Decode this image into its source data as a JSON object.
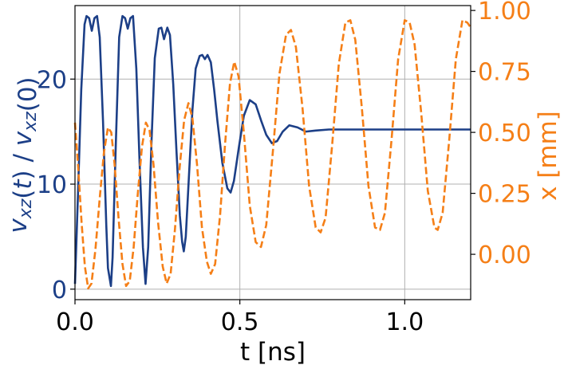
{
  "chart_data": {
    "type": "line",
    "x_axis": {
      "label": "t [ns]",
      "range": [
        0.0,
        1.2
      ],
      "ticks": [
        0.0,
        0.5,
        1.0
      ],
      "tick_labels": [
        "0.0",
        "0.5",
        "1.0"
      ]
    },
    "y_left_axis": {
      "label_parts": [
        {
          "text": "v",
          "italic": true
        },
        {
          "text": "xz",
          "italic": true,
          "sub": true
        },
        {
          "text": "(",
          "italic": false
        },
        {
          "text": "t",
          "italic": true
        },
        {
          "text": ") / ",
          "italic": false
        },
        {
          "text": "v",
          "italic": true
        },
        {
          "text": "xz",
          "italic": true,
          "sub": true
        },
        {
          "text": "(0)",
          "italic": false
        }
      ],
      "range": [
        -1,
        27
      ],
      "ticks": [
        0,
        10,
        20
      ],
      "tick_labels": [
        "0",
        "10",
        "20"
      ],
      "color": "#1c3f87"
    },
    "y_right_axis": {
      "label": "x [mm]",
      "range": [
        -0.186,
        1.02
      ],
      "ticks": [
        0.0,
        0.25,
        0.5,
        0.75,
        1.0
      ],
      "tick_labels": [
        "0.00",
        "0.25",
        "0.50",
        "0.75",
        "1.00"
      ],
      "color": "#f57f17"
    },
    "grid": true,
    "series": [
      {
        "axis": "left",
        "style": "solid",
        "color": "#1c3f87",
        "points": [
          [
            0.0,
            0.5
          ],
          [
            0.009,
            9
          ],
          [
            0.019,
            19
          ],
          [
            0.029,
            25.2
          ],
          [
            0.035,
            26
          ],
          [
            0.043,
            25.8
          ],
          [
            0.051,
            24.6
          ],
          [
            0.059,
            25.8
          ],
          [
            0.067,
            26
          ],
          [
            0.075,
            24
          ],
          [
            0.085,
            16
          ],
          [
            0.095,
            6
          ],
          [
            0.1,
            2
          ],
          [
            0.109,
            0.3
          ],
          [
            0.114,
            3
          ],
          [
            0.124,
            14
          ],
          [
            0.134,
            24
          ],
          [
            0.144,
            26
          ],
          [
            0.152,
            25.8
          ],
          [
            0.16,
            24.8
          ],
          [
            0.168,
            25.8
          ],
          [
            0.176,
            26
          ],
          [
            0.186,
            21
          ],
          [
            0.196,
            12
          ],
          [
            0.206,
            4
          ],
          [
            0.214,
            0.5
          ],
          [
            0.222,
            4
          ],
          [
            0.232,
            14
          ],
          [
            0.242,
            22
          ],
          [
            0.254,
            24.8
          ],
          [
            0.262,
            24.9
          ],
          [
            0.27,
            23.8
          ],
          [
            0.28,
            24.9
          ],
          [
            0.288,
            24.2
          ],
          [
            0.298,
            19.5
          ],
          [
            0.308,
            13
          ],
          [
            0.318,
            7
          ],
          [
            0.325,
            4.5
          ],
          [
            0.33,
            3.6
          ],
          [
            0.336,
            5
          ],
          [
            0.346,
            11
          ],
          [
            0.356,
            17
          ],
          [
            0.366,
            21
          ],
          [
            0.378,
            22.2
          ],
          [
            0.386,
            22.3
          ],
          [
            0.394,
            21.9
          ],
          [
            0.402,
            22.3
          ],
          [
            0.412,
            21.6
          ],
          [
            0.422,
            19
          ],
          [
            0.432,
            16
          ],
          [
            0.447,
            12
          ],
          [
            0.462,
            9.6
          ],
          [
            0.472,
            9.2
          ],
          [
            0.482,
            10.3
          ],
          [
            0.497,
            13.5
          ],
          [
            0.512,
            16.5
          ],
          [
            0.53,
            18
          ],
          [
            0.548,
            17.6
          ],
          [
            0.565,
            16
          ],
          [
            0.58,
            14.7
          ],
          [
            0.597,
            13.9
          ],
          [
            0.613,
            14.1
          ],
          [
            0.63,
            15
          ],
          [
            0.65,
            15.6
          ],
          [
            0.675,
            15.4
          ],
          [
            0.7,
            15
          ],
          [
            0.73,
            15.1
          ],
          [
            0.77,
            15.2
          ],
          [
            0.85,
            15.2
          ],
          [
            1.0,
            15.2
          ],
          [
            1.2,
            15.2
          ]
        ]
      },
      {
        "axis": "right",
        "style": "dashed",
        "color": "#f57f17",
        "points": [
          [
            0.0,
            0.54
          ],
          [
            0.01,
            0.35
          ],
          [
            0.02,
            0.13
          ],
          [
            0.03,
            -0.05
          ],
          [
            0.04,
            -0.14
          ],
          [
            0.05,
            -0.12
          ],
          [
            0.062,
            0.02
          ],
          [
            0.075,
            0.23
          ],
          [
            0.088,
            0.42
          ],
          [
            0.1,
            0.52
          ],
          [
            0.11,
            0.5
          ],
          [
            0.12,
            0.37
          ],
          [
            0.132,
            0.15
          ],
          [
            0.144,
            -0.04
          ],
          [
            0.155,
            -0.13
          ],
          [
            0.166,
            -0.11
          ],
          [
            0.178,
            0.03
          ],
          [
            0.19,
            0.24
          ],
          [
            0.203,
            0.44
          ],
          [
            0.215,
            0.54
          ],
          [
            0.226,
            0.51
          ],
          [
            0.238,
            0.37
          ],
          [
            0.252,
            0.13
          ],
          [
            0.266,
            -0.05
          ],
          [
            0.278,
            -0.12
          ],
          [
            0.29,
            -0.08
          ],
          [
            0.303,
            0.1
          ],
          [
            0.317,
            0.35
          ],
          [
            0.331,
            0.55
          ],
          [
            0.344,
            0.62
          ],
          [
            0.356,
            0.56
          ],
          [
            0.37,
            0.37
          ],
          [
            0.385,
            0.11
          ],
          [
            0.4,
            -0.03
          ],
          [
            0.412,
            -0.08
          ],
          [
            0.425,
            -0.04
          ],
          [
            0.44,
            0.16
          ],
          [
            0.455,
            0.45
          ],
          [
            0.47,
            0.7
          ],
          [
            0.483,
            0.79
          ],
          [
            0.496,
            0.73
          ],
          [
            0.512,
            0.5
          ],
          [
            0.53,
            0.2
          ],
          [
            0.548,
            0.05
          ],
          [
            0.564,
            0.03
          ],
          [
            0.58,
            0.12
          ],
          [
            0.6,
            0.42
          ],
          [
            0.62,
            0.74
          ],
          [
            0.64,
            0.9
          ],
          [
            0.655,
            0.92
          ],
          [
            0.67,
            0.85
          ],
          [
            0.69,
            0.6
          ],
          [
            0.71,
            0.28
          ],
          [
            0.73,
            0.11
          ],
          [
            0.745,
            0.09
          ],
          [
            0.76,
            0.15
          ],
          [
            0.78,
            0.45
          ],
          [
            0.8,
            0.78
          ],
          [
            0.82,
            0.95
          ],
          [
            0.835,
            0.96
          ],
          [
            0.85,
            0.88
          ],
          [
            0.87,
            0.6
          ],
          [
            0.89,
            0.28
          ],
          [
            0.91,
            0.11
          ],
          [
            0.925,
            0.1
          ],
          [
            0.94,
            0.17
          ],
          [
            0.96,
            0.47
          ],
          [
            0.98,
            0.8
          ],
          [
            1.0,
            0.96
          ],
          [
            1.015,
            0.95
          ],
          [
            1.03,
            0.86
          ],
          [
            1.05,
            0.58
          ],
          [
            1.07,
            0.26
          ],
          [
            1.09,
            0.11
          ],
          [
            1.1,
            0.1
          ],
          [
            1.115,
            0.17
          ],
          [
            1.135,
            0.47
          ],
          [
            1.155,
            0.8
          ],
          [
            1.175,
            0.96
          ],
          [
            1.19,
            0.95
          ],
          [
            1.2,
            0.93
          ]
        ]
      }
    ]
  }
}
